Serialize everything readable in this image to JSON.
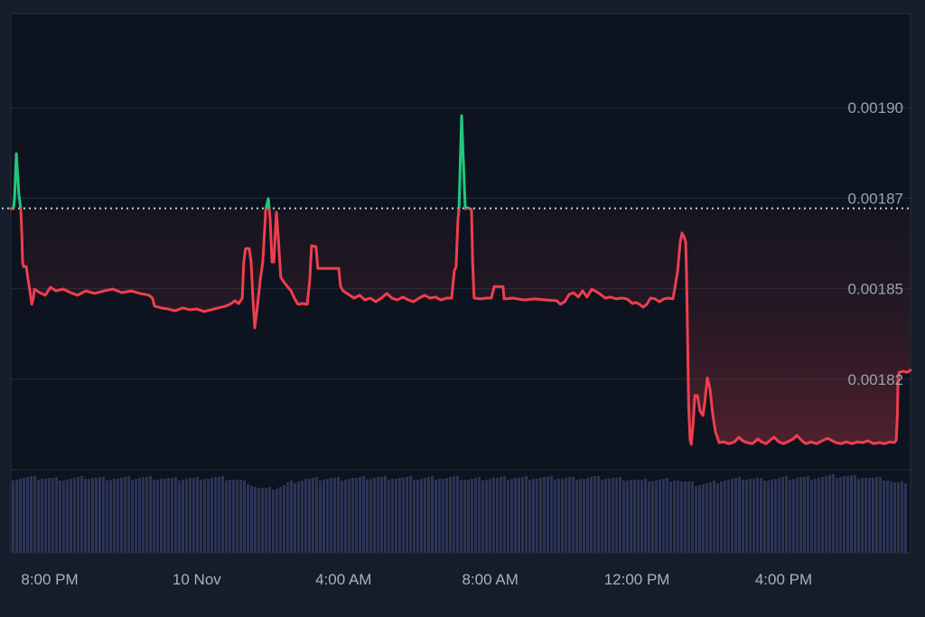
{
  "chart_data": {
    "type": "line",
    "subtype": "baseline_area_with_volume",
    "title": "",
    "xlabel": "",
    "ylabel": "",
    "legend": "none",
    "grid": "horizontal-on",
    "x_axis": {
      "window_hours": 24.53,
      "ticks": [
        {
          "label": "8:00 PM",
          "h": 1.06
        },
        {
          "label": "10 Nov",
          "h": 5.07
        },
        {
          "label": "4:00 AM",
          "h": 9.07
        },
        {
          "label": "8:00 AM",
          "h": 13.07
        },
        {
          "label": "12:00 PM",
          "h": 17.07
        },
        {
          "label": "4:00 PM",
          "h": 21.07
        }
      ]
    },
    "y_axis": {
      "range_min": 0.0018,
      "range_max": 0.001926,
      "ticks": [
        {
          "label": "0.00190",
          "value": 0.0019
        },
        {
          "label": "0.00187",
          "value": 0.001875
        },
        {
          "label": "0.00185",
          "value": 0.00185
        },
        {
          "label": "0.00182",
          "value": 0.001825
        }
      ]
    },
    "baseline_value": 0.0018722,
    "series": [
      {
        "name": "price",
        "points": [
          [
            0.0,
            0.0018721
          ],
          [
            0.07,
            0.0018721
          ],
          [
            0.1,
            0.0018748
          ],
          [
            0.15,
            0.0018873
          ],
          [
            0.22,
            0.001876
          ],
          [
            0.27,
            0.0018721
          ],
          [
            0.3,
            0.001865
          ],
          [
            0.32,
            0.0018574
          ],
          [
            0.35,
            0.0018561
          ],
          [
            0.42,
            0.0018561
          ],
          [
            0.47,
            0.0018524
          ],
          [
            0.52,
            0.0018494
          ],
          [
            0.57,
            0.0018457
          ],
          [
            0.62,
            0.0018477
          ],
          [
            0.64,
            0.0018499
          ],
          [
            0.79,
            0.0018489
          ],
          [
            0.94,
            0.0018482
          ],
          [
            1.08,
            0.0018504
          ],
          [
            1.23,
            0.0018494
          ],
          [
            1.43,
            0.0018499
          ],
          [
            1.63,
            0.0018489
          ],
          [
            1.82,
            0.0018482
          ],
          [
            2.04,
            0.0018494
          ],
          [
            2.29,
            0.0018487
          ],
          [
            2.54,
            0.0018494
          ],
          [
            2.78,
            0.0018499
          ],
          [
            3.03,
            0.0018489
          ],
          [
            3.28,
            0.0018494
          ],
          [
            3.52,
            0.0018487
          ],
          [
            3.77,
            0.0018482
          ],
          [
            3.86,
            0.0018474
          ],
          [
            3.92,
            0.0018452
          ],
          [
            4.09,
            0.0018447
          ],
          [
            4.29,
            0.0018444
          ],
          [
            4.48,
            0.0018439
          ],
          [
            4.68,
            0.0018447
          ],
          [
            4.88,
            0.0018442
          ],
          [
            5.07,
            0.0018444
          ],
          [
            5.27,
            0.0018437
          ],
          [
            5.47,
            0.0018442
          ],
          [
            5.66,
            0.0018447
          ],
          [
            5.86,
            0.0018452
          ],
          [
            6.01,
            0.0018459
          ],
          [
            6.11,
            0.0018467
          ],
          [
            6.21,
            0.0018459
          ],
          [
            6.31,
            0.0018474
          ],
          [
            6.35,
            0.0018574
          ],
          [
            6.4,
            0.0018611
          ],
          [
            6.5,
            0.0018611
          ],
          [
            6.55,
            0.0018574
          ],
          [
            6.6,
            0.0018474
          ],
          [
            6.65,
            0.0018392
          ],
          [
            6.72,
            0.0018449
          ],
          [
            6.8,
            0.0018524
          ],
          [
            6.87,
            0.0018574
          ],
          [
            6.95,
            0.0018719
          ],
          [
            7.02,
            0.0018749
          ],
          [
            7.07,
            0.0018691
          ],
          [
            7.12,
            0.0018574
          ],
          [
            7.17,
            0.0018574
          ],
          [
            7.24,
            0.0018711
          ],
          [
            7.29,
            0.0018644
          ],
          [
            7.36,
            0.0018531
          ],
          [
            7.44,
            0.0018519
          ],
          [
            7.54,
            0.0018506
          ],
          [
            7.64,
            0.0018494
          ],
          [
            7.73,
            0.0018474
          ],
          [
            7.83,
            0.0018457
          ],
          [
            7.96,
            0.0018459
          ],
          [
            8.08,
            0.0018457
          ],
          [
            8.15,
            0.0018524
          ],
          [
            8.2,
            0.0018619
          ],
          [
            8.32,
            0.0018616
          ],
          [
            8.37,
            0.0018556
          ],
          [
            8.45,
            0.0018556
          ],
          [
            8.69,
            0.0018556
          ],
          [
            8.94,
            0.0018556
          ],
          [
            8.99,
            0.0018506
          ],
          [
            9.06,
            0.0018494
          ],
          [
            9.21,
            0.0018484
          ],
          [
            9.36,
            0.0018474
          ],
          [
            9.51,
            0.0018482
          ],
          [
            9.65,
            0.0018469
          ],
          [
            9.8,
            0.0018474
          ],
          [
            9.95,
            0.0018464
          ],
          [
            10.1,
            0.0018474
          ],
          [
            10.25,
            0.0018487
          ],
          [
            10.39,
            0.0018474
          ],
          [
            10.54,
            0.0018469
          ],
          [
            10.69,
            0.0018477
          ],
          [
            10.84,
            0.0018469
          ],
          [
            10.98,
            0.0018464
          ],
          [
            11.13,
            0.0018474
          ],
          [
            11.28,
            0.0018482
          ],
          [
            11.43,
            0.0018474
          ],
          [
            11.58,
            0.0018477
          ],
          [
            11.72,
            0.0018469
          ],
          [
            11.87,
            0.0018474
          ],
          [
            12.02,
            0.0018474
          ],
          [
            12.09,
            0.0018549
          ],
          [
            12.14,
            0.0018561
          ],
          [
            12.19,
            0.0018691
          ],
          [
            12.22,
            0.0018721
          ],
          [
            12.24,
            0.0018798
          ],
          [
            12.29,
            0.0018978
          ],
          [
            12.34,
            0.0018848
          ],
          [
            12.39,
            0.0018721
          ],
          [
            12.44,
            0.0018724
          ],
          [
            12.51,
            0.0018721
          ],
          [
            12.56,
            0.0018719
          ],
          [
            12.59,
            0.0018574
          ],
          [
            12.63,
            0.0018474
          ],
          [
            12.81,
            0.0018472
          ],
          [
            12.96,
            0.0018474
          ],
          [
            13.1,
            0.0018474
          ],
          [
            13.18,
            0.0018506
          ],
          [
            13.33,
            0.0018506
          ],
          [
            13.42,
            0.0018506
          ],
          [
            13.45,
            0.0018472
          ],
          [
            13.69,
            0.0018474
          ],
          [
            13.99,
            0.0018469
          ],
          [
            14.29,
            0.0018472
          ],
          [
            14.58,
            0.0018469
          ],
          [
            14.88,
            0.0018467
          ],
          [
            14.98,
            0.0018457
          ],
          [
            15.1,
            0.0018464
          ],
          [
            15.22,
            0.0018484
          ],
          [
            15.34,
            0.0018489
          ],
          [
            15.47,
            0.0018477
          ],
          [
            15.59,
            0.0018494
          ],
          [
            15.71,
            0.0018477
          ],
          [
            15.84,
            0.0018499
          ],
          [
            15.96,
            0.0018492
          ],
          [
            16.08,
            0.0018484
          ],
          [
            16.21,
            0.0018474
          ],
          [
            16.35,
            0.0018477
          ],
          [
            16.5,
            0.0018472
          ],
          [
            16.65,
            0.0018474
          ],
          [
            16.8,
            0.0018472
          ],
          [
            16.95,
            0.0018459
          ],
          [
            17.04,
            0.0018462
          ],
          [
            17.14,
            0.0018457
          ],
          [
            17.24,
            0.0018449
          ],
          [
            17.34,
            0.0018457
          ],
          [
            17.44,
            0.0018474
          ],
          [
            17.56,
            0.0018472
          ],
          [
            17.68,
            0.0018464
          ],
          [
            17.81,
            0.0018472
          ],
          [
            17.93,
            0.0018474
          ],
          [
            18.05,
            0.0018472
          ],
          [
            18.1,
            0.0018499
          ],
          [
            18.18,
            0.0018549
          ],
          [
            18.25,
            0.0018629
          ],
          [
            18.3,
            0.0018654
          ],
          [
            18.35,
            0.0018644
          ],
          [
            18.4,
            0.0018629
          ],
          [
            18.42,
            0.0018549
          ],
          [
            18.45,
            0.0018374
          ],
          [
            18.48,
            0.0018175
          ],
          [
            18.52,
            0.0018082
          ],
          [
            18.55,
            0.001807
          ],
          [
            18.6,
            0.0018125
          ],
          [
            18.65,
            0.0018205
          ],
          [
            18.72,
            0.0018205
          ],
          [
            18.79,
            0.0018162
          ],
          [
            18.87,
            0.001815
          ],
          [
            18.92,
            0.0018187
          ],
          [
            18.99,
            0.0018254
          ],
          [
            19.06,
            0.0018224
          ],
          [
            19.14,
            0.001815
          ],
          [
            19.21,
            0.0018105
          ],
          [
            19.31,
            0.0018075
          ],
          [
            19.43,
            0.0018077
          ],
          [
            19.58,
            0.0018072
          ],
          [
            19.73,
            0.0018077
          ],
          [
            19.85,
            0.001809
          ],
          [
            19.95,
            0.001808
          ],
          [
            20.07,
            0.0018075
          ],
          [
            20.22,
            0.0018072
          ],
          [
            20.37,
            0.0018085
          ],
          [
            20.47,
            0.0018077
          ],
          [
            20.59,
            0.0018072
          ],
          [
            20.71,
            0.0018082
          ],
          [
            20.81,
            0.001809
          ],
          [
            20.94,
            0.0018077
          ],
          [
            21.06,
            0.0018072
          ],
          [
            21.18,
            0.0018077
          ],
          [
            21.33,
            0.0018085
          ],
          [
            21.43,
            0.0018095
          ],
          [
            21.55,
            0.0018082
          ],
          [
            21.67,
            0.0018072
          ],
          [
            21.82,
            0.0018077
          ],
          [
            21.97,
            0.0018072
          ],
          [
            22.12,
            0.001808
          ],
          [
            22.27,
            0.0018087
          ],
          [
            22.36,
            0.0018082
          ],
          [
            22.49,
            0.0018075
          ],
          [
            22.64,
            0.0018072
          ],
          [
            22.78,
            0.0018077
          ],
          [
            22.93,
            0.0018072
          ],
          [
            23.08,
            0.0018077
          ],
          [
            23.23,
            0.0018075
          ],
          [
            23.37,
            0.001808
          ],
          [
            23.52,
            0.0018072
          ],
          [
            23.67,
            0.0018075
          ],
          [
            23.82,
            0.0018072
          ],
          [
            23.97,
            0.0018077
          ],
          [
            24.09,
            0.0018075
          ],
          [
            24.14,
            0.0018082
          ],
          [
            24.17,
            0.001815
          ],
          [
            24.19,
            0.0018249
          ],
          [
            24.22,
            0.0018269
          ],
          [
            24.33,
            0.0018272
          ],
          [
            24.43,
            0.0018269
          ],
          [
            24.53,
            0.0018275
          ]
        ]
      }
    ],
    "volume_profile": [
      [
        0,
        0.97
      ],
      [
        0.5,
        0.98
      ],
      [
        1,
        0.97
      ],
      [
        1.5,
        0.96
      ],
      [
        2,
        0.98
      ],
      [
        2.5,
        0.97
      ],
      [
        3,
        0.97
      ],
      [
        3.5,
        0.98
      ],
      [
        4,
        0.97
      ],
      [
        4.5,
        0.96
      ],
      [
        5,
        0.97
      ],
      [
        5.5,
        0.98
      ],
      [
        6,
        0.96
      ],
      [
        6.4,
        0.92
      ],
      [
        6.7,
        0.85
      ],
      [
        7.0,
        0.83
      ],
      [
        7.3,
        0.86
      ],
      [
        7.6,
        0.92
      ],
      [
        8,
        0.96
      ],
      [
        9,
        0.97
      ],
      [
        10,
        0.98
      ],
      [
        11,
        0.97
      ],
      [
        12,
        0.98
      ],
      [
        12.5,
        0.96
      ],
      [
        13,
        0.97
      ],
      [
        14,
        0.98
      ],
      [
        15,
        0.97
      ],
      [
        16,
        0.98
      ],
      [
        16.8,
        0.96
      ],
      [
        17.2,
        0.94
      ],
      [
        17.6,
        0.95
      ],
      [
        18,
        0.96
      ],
      [
        18.4,
        0.92
      ],
      [
        18.7,
        0.89
      ],
      [
        19.0,
        0.9
      ],
      [
        19.3,
        0.94
      ],
      [
        19.7,
        0.96
      ],
      [
        20,
        0.97
      ],
      [
        20.5,
        0.96
      ],
      [
        21,
        0.97
      ],
      [
        21.5,
        0.98
      ],
      [
        22,
        0.98
      ],
      [
        22.4,
        1.0
      ],
      [
        22.8,
        1.0
      ],
      [
        23.2,
        0.99
      ],
      [
        23.5,
        0.97
      ],
      [
        23.8,
        0.96
      ],
      [
        24.0,
        0.93
      ],
      [
        24.15,
        0.9
      ],
      [
        24.3,
        0.92
      ],
      [
        24.53,
        0.96
      ]
    ],
    "colors": {
      "background": "#151c2a",
      "plot_background": "#0e141f",
      "grid": "#222a38",
      "border": "#262e3d",
      "line_up": "#1fc97e",
      "line_down": "#ef3e4e",
      "baseline_dotted": "#c9cedb",
      "fill_down": "#ef3e4e",
      "fill_up": "#1fc97e",
      "volume_bar": "#2c3457",
      "y_label_color": "#9aa1b1",
      "x_label_color": "#a9b0bf"
    }
  }
}
